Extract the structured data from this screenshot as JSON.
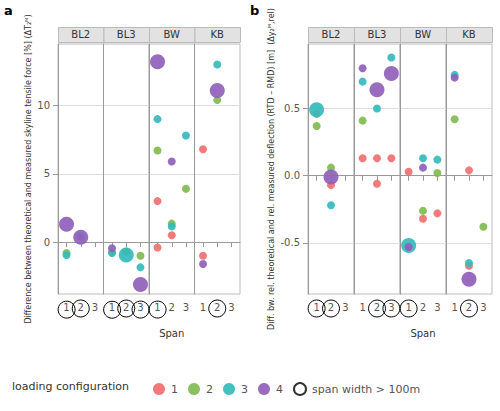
{
  "chart_data": {
    "type": "scatter",
    "legend": "bottom",
    "legend_title": "loading configuration",
    "series": [
      {
        "name": "1",
        "color": "#F07070"
      },
      {
        "name": "2",
        "color": "#80BB50"
      },
      {
        "name": "3",
        "color": "#35BBBB"
      },
      {
        "name": "4",
        "color": "#9060BB"
      },
      {
        "name": "span width > 100m",
        "marker": "open_circle"
      }
    ],
    "panels": [
      {
        "label": "a",
        "ylabel": "Difference between theoretical and measured skyline tensile force [%] (ΔT₂ᴹ)",
        "xlabel": "Span",
        "xlim": [
          0.4,
          3.6
        ],
        "ylim": [
          -3.8,
          14.5
        ],
        "xticks": [
          1,
          2,
          3
        ],
        "yticks": [
          0,
          5,
          10
        ],
        "grid": true,
        "facets": [
          {
            "title": "BL2",
            "x": [
              1,
              1,
              1,
              2,
              2
            ],
            "values": [
              1.3,
              -0.8,
              -0.95,
              0.35,
              0.4
            ],
            "config": [
              "4",
              "2",
              "3",
              "4",
              "3"
            ],
            "large": [
              true,
              false,
              false,
              true,
              false
            ],
            "circled_ticks": [
              1,
              2
            ]
          },
          {
            "title": "BL3",
            "x": [
              1,
              1,
              1,
              2,
              2,
              3,
              3,
              3
            ],
            "values": [
              -0.45,
              -0.75,
              -0.8,
              -0.7,
              -0.95,
              -1.0,
              -1.85,
              -3.1
            ],
            "config": [
              "4",
              "2",
              "3",
              "2",
              "3",
              "2",
              "3",
              "4"
            ],
            "large": [
              false,
              false,
              false,
              false,
              true,
              false,
              false,
              true
            ],
            "circled_ticks": [
              1,
              2,
              3
            ]
          },
          {
            "title": "BW",
            "x": [
              1,
              1,
              1,
              1,
              1,
              2,
              2,
              2,
              2,
              3,
              3
            ],
            "values": [
              13.2,
              9.0,
              6.7,
              3.0,
              -0.4,
              5.9,
              1.35,
              1.15,
              0.5,
              7.8,
              3.9
            ],
            "config": [
              "4",
              "3",
              "2",
              "1",
              "1",
              "4",
              "2",
              "3",
              "1",
              "3",
              "2"
            ],
            "large": [
              true,
              false,
              false,
              false,
              false,
              false,
              false,
              false,
              false,
              false,
              false
            ],
            "circled_ticks": [
              1
            ]
          },
          {
            "title": "KB",
            "x": [
              1,
              2,
              2,
              2,
              1,
              1
            ],
            "values": [
              6.8,
              13.0,
              11.1,
              10.4,
              -1.0,
              -1.6
            ],
            "config": [
              "1",
              "3",
              "4",
              "2",
              "1",
              "4"
            ],
            "large": [
              false,
              false,
              true,
              false,
              false,
              false
            ],
            "circled_ticks": [
              2
            ]
          }
        ]
      },
      {
        "label": "b",
        "ylabel": "Diff. bw. rel. theoretical and rel. measured deflection (RTD – RMD) [m]  (Δy₂ᴹ,rel)",
        "xlabel": "Span",
        "xlim": [
          0.4,
          3.6
        ],
        "ylim": [
          -0.88,
          0.98
        ],
        "xticks": [
          1,
          2,
          3
        ],
        "yticks": [
          -0.5,
          {
            "value": 0.0,
            "label": "0.0"
          },
          0.5
        ],
        "grid": true,
        "facets": [
          {
            "title": "BL2",
            "x": [
              1,
              1,
              1,
              2,
              2,
              2,
              2
            ],
            "values": [
              0.49,
              0.46,
              0.37,
              0.06,
              -0.01,
              -0.07,
              -0.22
            ],
            "config": [
              "3",
              "1",
              "2",
              "2",
              "4",
              "1",
              "3"
            ],
            "large": [
              true,
              false,
              false,
              false,
              true,
              false,
              false
            ],
            "circled_ticks": [
              1,
              2
            ]
          },
          {
            "title": "BL3",
            "x": [
              1,
              1,
              1,
              1,
              2,
              2,
              2,
              2,
              3,
              3,
              3
            ],
            "values": [
              0.8,
              0.7,
              0.41,
              0.13,
              0.64,
              0.5,
              0.13,
              -0.06,
              0.88,
              0.76,
              0.13
            ],
            "config": [
              "4",
              "3",
              "2",
              "1",
              "4",
              "3",
              "1",
              "1",
              "3",
              "4",
              "1"
            ],
            "large": [
              false,
              false,
              false,
              false,
              true,
              false,
              false,
              false,
              false,
              true,
              false
            ],
            "circled_ticks": [
              2,
              3
            ]
          },
          {
            "title": "BW",
            "x": [
              1,
              1,
              1,
              2,
              2,
              2,
              2,
              3,
              3,
              3
            ],
            "values": [
              -0.52,
              -0.53,
              0.03,
              0.06,
              0.13,
              -0.26,
              -0.32,
              0.12,
              0.02,
              -0.28
            ],
            "config": [
              "3",
              "4",
              "1",
              "4",
              "3",
              "2",
              "1",
              "3",
              "2",
              "1"
            ],
            "large": [
              true,
              false,
              false,
              false,
              false,
              false,
              false,
              false,
              false,
              false
            ],
            "circled_ticks": [
              1
            ]
          },
          {
            "title": "KB",
            "x": [
              1,
              1,
              1,
              2,
              2,
              2,
              2,
              3
            ],
            "values": [
              0.75,
              0.73,
              0.42,
              0.04,
              -0.65,
              -0.67,
              -0.77,
              -0.38
            ],
            "config": [
              "3",
              "4",
              "2",
              "1",
              "3",
              "1",
              "4",
              "2"
            ],
            "large": [
              false,
              false,
              false,
              false,
              false,
              false,
              true,
              false
            ],
            "circled_ticks": [
              2
            ]
          }
        ]
      }
    ]
  }
}
